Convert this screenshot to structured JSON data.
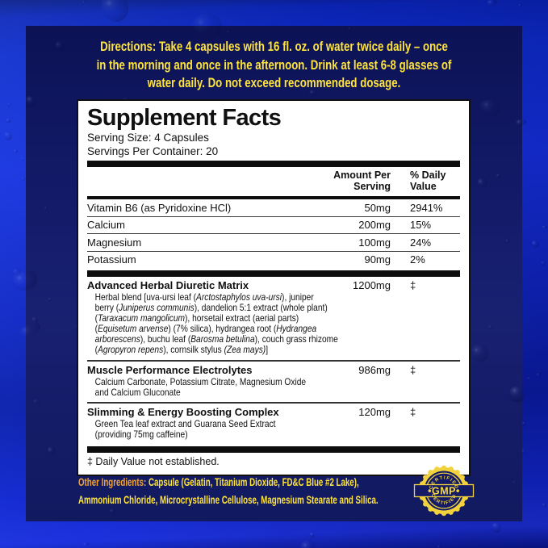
{
  "colors": {
    "background_blue": "#1530da",
    "panel_navy": "#141b66",
    "text_yellow": "#ffe43c",
    "label_orange": "#f0a53a",
    "badge_yellow": "#f2d23c",
    "box_white": "#ffffff",
    "box_text": "#101010"
  },
  "directions": {
    "lines": [
      "Directions: Take 4 capsules with 16 fl. oz. of water twice daily – once",
      "in the morning and once in the afternoon. Drink at least 6-8 glasses of",
      "water daily.  Do not exceed recommended dosage."
    ]
  },
  "supplement_facts": {
    "title": "Supplement Facts",
    "serving_size": "Serving Size: 4 Capsules",
    "servings_per_container": "Servings Per Container: 20",
    "headers": {
      "amount_line1": "Amount Per",
      "amount_line2": "Serving",
      "dv_line1": "% Daily",
      "dv_line2": "Value"
    },
    "nutrients": [
      {
        "name": "Vitamin B6 (as Pyridoxine HCl)",
        "amount": "50mg",
        "dv": "2941%"
      },
      {
        "name": "Calcium",
        "amount": "200mg",
        "dv": "15%"
      },
      {
        "name": "Magnesium",
        "amount": "100mg",
        "dv": "24%"
      },
      {
        "name": "Potassium",
        "amount": "90mg",
        "dv": "2%"
      }
    ],
    "blends": [
      {
        "name": "Advanced Herbal Diuretic Matrix",
        "amount": "1200mg",
        "dv": "‡",
        "detail_lines": [
          [
            {
              "t": "Herbal blend [uva-ursi leaf ("
            },
            {
              "t": "Arctostaphylos uva-ursi",
              "i": 1
            },
            {
              "t": "), juniper"
            }
          ],
          [
            {
              "t": "berry ("
            },
            {
              "t": "Juniperus communis",
              "i": 1
            },
            {
              "t": "), dandelion 5:1 extract (whole plant)"
            }
          ],
          [
            {
              "t": "("
            },
            {
              "t": "Taraxacum mangolicum",
              "i": 1
            },
            {
              "t": "), horsetail extract (aerial parts)"
            }
          ],
          [
            {
              "t": "("
            },
            {
              "t": "Equisetum arvense",
              "i": 1
            },
            {
              "t": ") (7% silica), hydrangea root ("
            },
            {
              "t": "Hydrangea",
              "i": 1
            }
          ],
          [
            {
              "t": "arborescens",
              "i": 1
            },
            {
              "t": "), buchu leaf ("
            },
            {
              "t": "Barosma betulina",
              "i": 1
            },
            {
              "t": "), couch grass rhizome"
            }
          ],
          [
            {
              "t": "("
            },
            {
              "t": "Agropyron repens",
              "i": 1
            },
            {
              "t": "), cornsilk stylus "
            },
            {
              "t": "(Zea mays)",
              "i": 1
            },
            {
              "t": "]"
            }
          ]
        ]
      },
      {
        "name": "Muscle Performance Electrolytes",
        "amount": "986mg",
        "dv": "‡",
        "detail_lines": [
          [
            {
              "t": "Calcium Carbonate, Potassium Citrate, Magnesium Oxide"
            }
          ],
          [
            {
              "t": "and Calcium Gluconate"
            }
          ]
        ]
      },
      {
        "name": "Slimming & Energy Boosting Complex",
        "amount": "120mg",
        "dv": "‡",
        "detail_lines": [
          [
            {
              "t": "Green Tea leaf extract and Guarana Seed Extract"
            }
          ],
          [
            {
              "t": "(providing 75mg caffeine)"
            }
          ]
        ]
      }
    ],
    "footnote": "‡ Daily Value not established."
  },
  "other_ingredients": {
    "label": "Other Ingredients:",
    "line1_rest": " Capsule (Gelatin, Titanium Dioxide,  FD&C Blue #2 Lake),",
    "line2": "Ammonium Chloride, Microcrystalline Cellulose, Magnesium Stearate and Silica."
  },
  "badge": {
    "top": "CERTIFIED",
    "center": "•GMP•",
    "bottom": "CERTIFIED"
  }
}
